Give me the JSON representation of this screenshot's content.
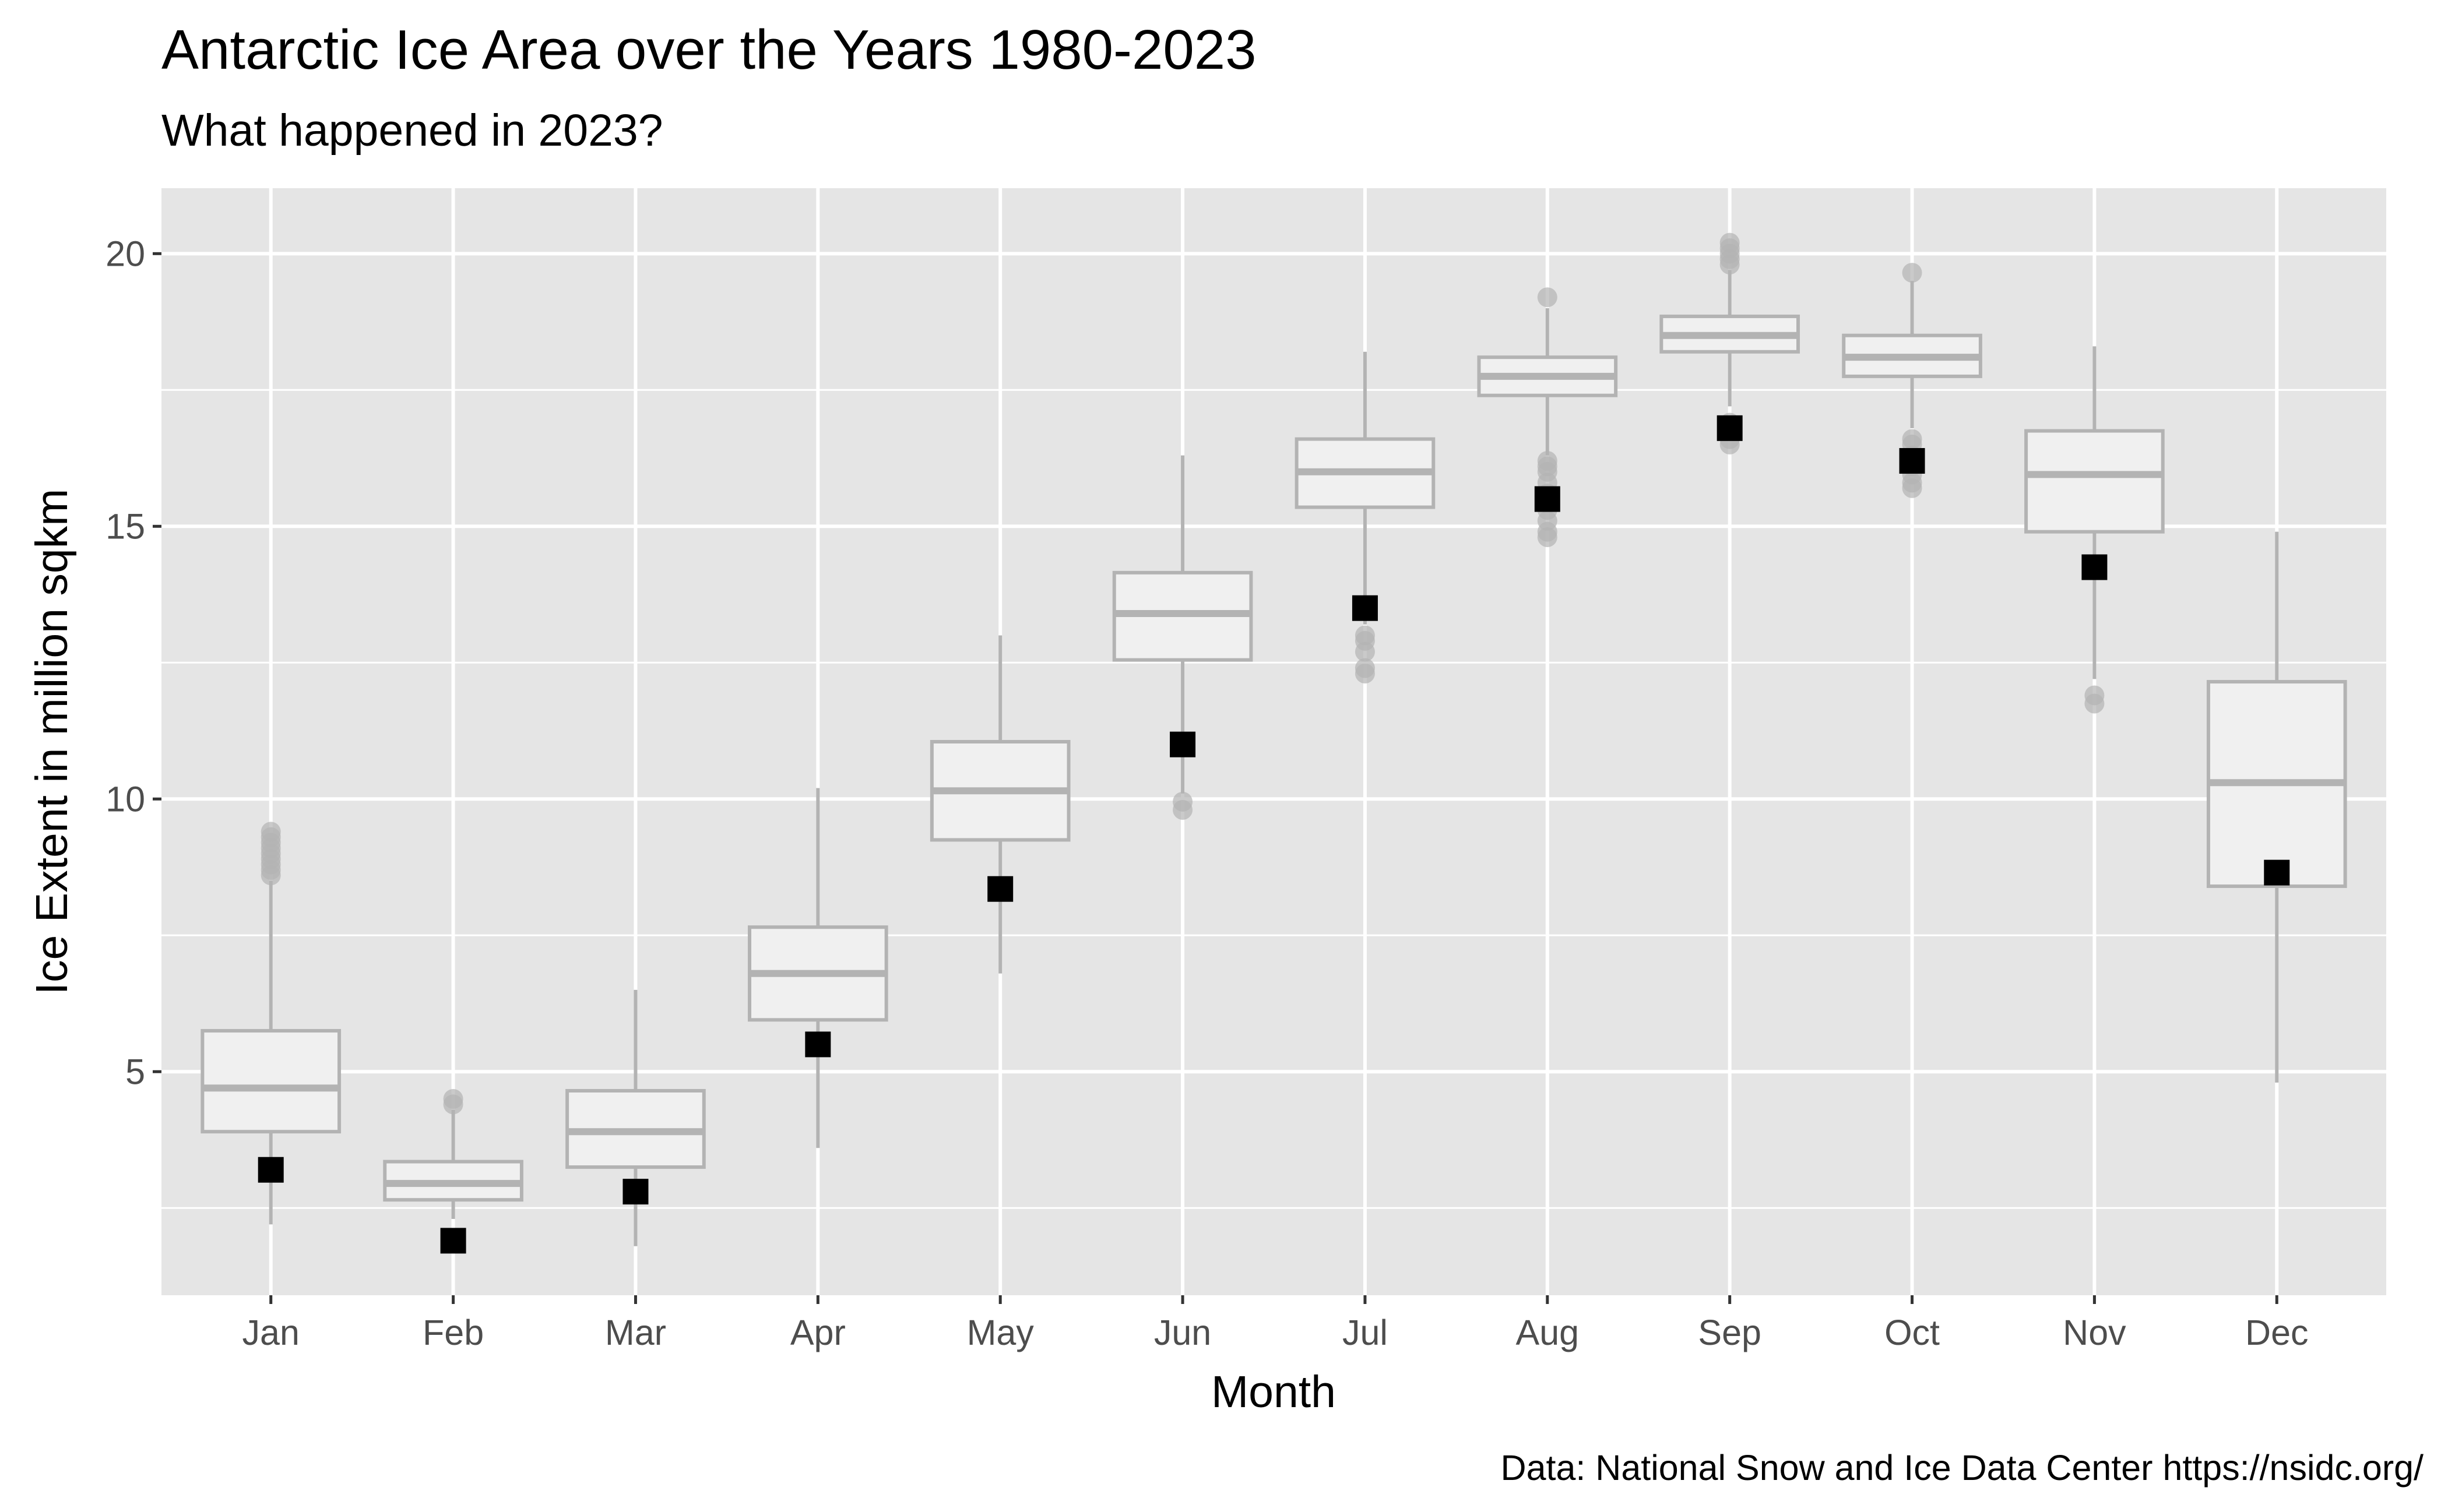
{
  "chart_data": {
    "type": "box",
    "title": "Antarctic Ice Area over the Years 1980-2023",
    "subtitle": "What happened in 2023?",
    "xlabel": "Month",
    "ylabel": "Ice Extent in million sqkm",
    "caption": "Data: National Snow and Ice Data Center https://nsidc.org/",
    "categories": [
      "Jan",
      "Feb",
      "Mar",
      "Apr",
      "May",
      "Jun",
      "Jul",
      "Aug",
      "Sep",
      "Oct",
      "Nov",
      "Dec"
    ],
    "y_ticks": [
      5,
      10,
      15,
      20
    ],
    "ylim": [
      0.9,
      21.2
    ],
    "grid": true,
    "boxes": [
      {
        "month": "Jan",
        "whisker_low": 2.2,
        "q1": 3.9,
        "median": 4.7,
        "q3": 5.75,
        "whisker_high": 8.5,
        "outliers": [
          8.6,
          8.7,
          8.8,
          8.9,
          9.0,
          9.1,
          9.2,
          9.3,
          9.4
        ]
      },
      {
        "month": "Feb",
        "whisker_low": 2.3,
        "q1": 2.65,
        "median": 2.95,
        "q3": 3.35,
        "whisker_high": 4.3,
        "outliers": [
          4.4,
          4.5
        ]
      },
      {
        "month": "Mar",
        "whisker_low": 1.8,
        "q1": 3.25,
        "median": 3.9,
        "q3": 4.65,
        "whisker_high": 6.5,
        "outliers": []
      },
      {
        "month": "Apr",
        "whisker_low": 3.6,
        "q1": 5.95,
        "median": 6.8,
        "q3": 7.65,
        "whisker_high": 10.2,
        "outliers": []
      },
      {
        "month": "May",
        "whisker_low": 6.8,
        "q1": 9.25,
        "median": 10.15,
        "q3": 11.05,
        "whisker_high": 13.0,
        "outliers": []
      },
      {
        "month": "Jun",
        "whisker_low": 10.1,
        "q1": 12.55,
        "median": 13.4,
        "q3": 14.15,
        "whisker_high": 16.3,
        "outliers": [
          9.8,
          9.95
        ]
      },
      {
        "month": "Jul",
        "whisker_low": 13.2,
        "q1": 15.35,
        "median": 16.0,
        "q3": 16.6,
        "whisker_high": 18.2,
        "outliers": [
          12.3,
          12.4,
          12.7,
          12.9,
          13.0
        ]
      },
      {
        "month": "Aug",
        "whisker_low": 16.3,
        "q1": 17.4,
        "median": 17.75,
        "q3": 18.1,
        "whisker_high": 19.0,
        "outliers": [
          14.8,
          14.9,
          15.1,
          15.3,
          15.5,
          15.6,
          15.8,
          16.0,
          16.1,
          16.2,
          19.2
        ]
      },
      {
        "month": "Sep",
        "whisker_low": 17.2,
        "q1": 18.2,
        "median": 18.5,
        "q3": 18.85,
        "whisker_high": 19.7,
        "outliers": [
          16.5,
          16.6,
          16.75,
          16.9,
          19.8,
          19.9,
          20.0,
          20.1,
          20.2
        ]
      },
      {
        "month": "Oct",
        "whisker_low": 16.8,
        "q1": 17.75,
        "median": 18.1,
        "q3": 18.5,
        "whisker_high": 19.5,
        "outliers": [
          15.7,
          15.8,
          15.95,
          16.1,
          16.3,
          16.5,
          16.6,
          19.65
        ]
      },
      {
        "month": "Nov",
        "whisker_low": 12.2,
        "q1": 14.9,
        "median": 15.95,
        "q3": 16.75,
        "whisker_high": 18.3,
        "outliers": [
          11.75,
          11.9
        ]
      },
      {
        "month": "Dec",
        "whisker_low": 4.8,
        "q1": 8.4,
        "median": 10.3,
        "q3": 12.15,
        "whisker_high": 14.9,
        "outliers": []
      }
    ],
    "series": [
      {
        "values": [
          3.2,
          1.9,
          2.8,
          5.5,
          8.35,
          11.0,
          13.5,
          15.5,
          16.8,
          16.2,
          14.25,
          8.65
        ]
      }
    ],
    "colors": {
      "panel": "#e5e5e5",
      "gridline": "#ffffff",
      "box_stroke": "#b3b3b3",
      "box_fill": "#f0f0f0",
      "point_2023": "#000000",
      "tick_label": "#4d4d4d"
    }
  }
}
